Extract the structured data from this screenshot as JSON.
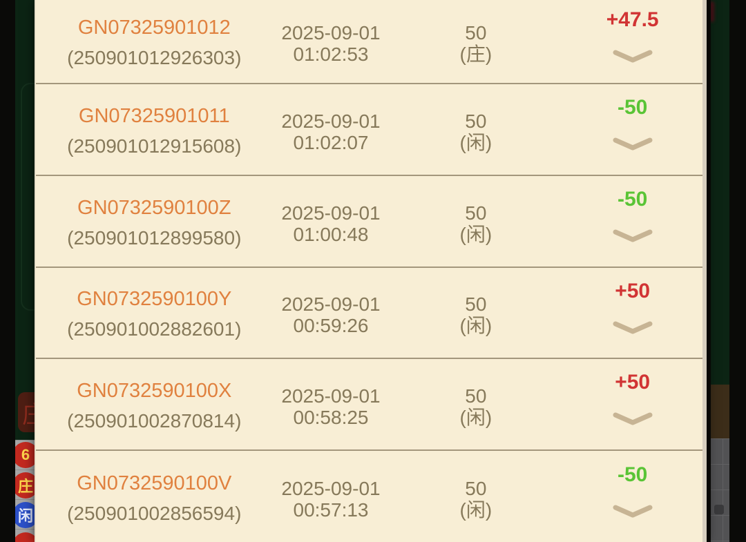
{
  "modal": {
    "rows": [
      {
        "game_no": "GN07325901012",
        "serial": "(250901012926303)",
        "date": "2025-09-01",
        "time": "01:02:53",
        "amount": "50",
        "side": "(庄)",
        "result": "+47.5",
        "result_type": "win"
      },
      {
        "game_no": "GN07325901011",
        "serial": "(250901012915608)",
        "date": "2025-09-01",
        "time": "01:02:07",
        "amount": "50",
        "side": "(闲)",
        "result": "-50",
        "result_type": "loss"
      },
      {
        "game_no": "GN0732590100Z",
        "serial": "(250901012899580)",
        "date": "2025-09-01",
        "time": "01:00:48",
        "amount": "50",
        "side": "(闲)",
        "result": "-50",
        "result_type": "loss"
      },
      {
        "game_no": "GN0732590100Y",
        "serial": "(250901002882601)",
        "date": "2025-09-01",
        "time": "00:59:26",
        "amount": "50",
        "side": "(闲)",
        "result": "+50",
        "result_type": "win"
      },
      {
        "game_no": "GN0732590100X",
        "serial": "(250901002870814)",
        "date": "2025-09-01",
        "time": "00:58:25",
        "amount": "50",
        "side": "(闲)",
        "result": "+50",
        "result_type": "win"
      },
      {
        "game_no": "GN0732590100V",
        "serial": "(250901002856594)",
        "date": "2025-09-01",
        "time": "00:57:13",
        "amount": "50",
        "side": "(闲)",
        "result": "-50",
        "result_type": "loss"
      }
    ]
  },
  "background_table": {
    "bet_area_label": "庄",
    "beads": [
      {
        "label": "6",
        "color": "red"
      },
      {
        "label": "庄",
        "color": "red"
      },
      {
        "label": "闲",
        "color": "blue"
      },
      {
        "label": "",
        "color": "red"
      }
    ]
  },
  "colors": {
    "win": "#d13434",
    "loss": "#5ac436",
    "game_no": "#e0813f",
    "muted_text": "#86795a",
    "panel_bg": "#f8eed5",
    "chevron": "#c7b494",
    "bead_red": "#c3291f",
    "bead_blue": "#2c50c8",
    "table_green": "#0c2414"
  }
}
